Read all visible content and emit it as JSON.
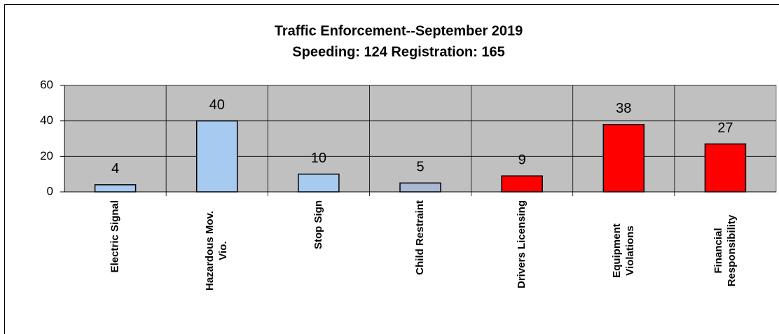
{
  "chart_data": {
    "type": "bar",
    "title": "Traffic Enforcement--September 2019",
    "subtitle": "Speeding: 124  Registration: 165",
    "categories": [
      [
        "Electric Signal"
      ],
      [
        "Hazardous Mov.",
        "Vio."
      ],
      [
        "Stop Sign"
      ],
      [
        "Child Restraint"
      ],
      [
        "Drivers Licensing"
      ],
      [
        "Equipment",
        "Violations"
      ],
      [
        "Financial",
        "Responsibility"
      ]
    ],
    "values": [
      4,
      40,
      10,
      5,
      9,
      38,
      27
    ],
    "colors": [
      "#a6caf0",
      "#a6caf0",
      "#a6caf0",
      "#aab8d4",
      "#ff0000",
      "#ff0000",
      "#ff0000"
    ],
    "ylim": [
      0,
      60
    ],
    "yticks": [
      0,
      20,
      40,
      60
    ],
    "grid": true
  }
}
